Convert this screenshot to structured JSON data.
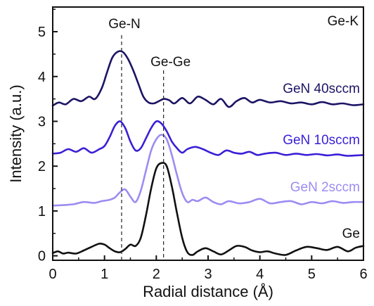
{
  "chart_data": {
    "type": "line",
    "title": "",
    "corner_label": "Ge-K",
    "xlabel": "Radial distance (Å)",
    "ylabel": "Intensity (a.u.)",
    "xlim": [
      0,
      6
    ],
    "ylim": [
      -0.1,
      5.55
    ],
    "xticks": [
      "0",
      "1",
      "2",
      "3",
      "4",
      "5",
      "6"
    ],
    "yticks": [
      "0",
      "1",
      "2",
      "3",
      "4",
      "5"
    ],
    "grid": false,
    "legend": "inline labels next to each curve",
    "reference_lines": [
      {
        "label": "Ge-N",
        "x": 1.33
      },
      {
        "label": "Ge-Ge",
        "x": 2.14
      }
    ],
    "series": [
      {
        "name": "GeN 40sccm",
        "color": "#1b1464",
        "x": [
          0,
          0.12,
          0.25,
          0.4,
          0.55,
          0.7,
          0.82,
          0.95,
          1.05,
          1.15,
          1.25,
          1.35,
          1.45,
          1.55,
          1.65,
          1.75,
          1.85,
          1.95,
          2.05,
          2.15,
          2.25,
          2.35,
          2.5,
          2.65,
          2.8,
          2.95,
          3.1,
          3.25,
          3.4,
          3.55,
          3.7,
          3.85,
          4.0,
          4.2,
          4.4,
          4.6,
          4.8,
          5.0,
          5.2,
          5.4,
          5.6,
          5.8,
          6.0
        ],
        "y": [
          3.35,
          3.42,
          3.38,
          3.5,
          3.45,
          3.55,
          3.5,
          3.75,
          4.1,
          4.42,
          4.55,
          4.55,
          4.4,
          4.15,
          3.85,
          3.55,
          3.42,
          3.4,
          3.45,
          3.5,
          3.47,
          3.4,
          3.52,
          3.4,
          3.55,
          3.48,
          3.38,
          3.5,
          3.32,
          3.45,
          3.52,
          3.42,
          3.48,
          3.42,
          3.45,
          3.4,
          3.42,
          3.38,
          3.43,
          3.38,
          3.4,
          3.36,
          3.38
        ]
      },
      {
        "name": "GeN 10sccm",
        "color": "#3a1fd6",
        "x": [
          0,
          0.15,
          0.3,
          0.45,
          0.6,
          0.75,
          0.9,
          1.0,
          1.1,
          1.2,
          1.3,
          1.4,
          1.5,
          1.6,
          1.7,
          1.8,
          1.9,
          2.0,
          2.1,
          2.2,
          2.3,
          2.4,
          2.5,
          2.6,
          2.75,
          2.9,
          3.05,
          3.2,
          3.35,
          3.5,
          3.65,
          3.8,
          3.95,
          4.1,
          4.3,
          4.5,
          4.7,
          4.9,
          5.1,
          5.3,
          5.5,
          5.7,
          6.0
        ],
        "y": [
          2.28,
          2.3,
          2.38,
          2.32,
          2.4,
          2.3,
          2.38,
          2.45,
          2.65,
          2.9,
          3.0,
          2.85,
          2.55,
          2.35,
          2.4,
          2.62,
          2.85,
          3.0,
          2.95,
          2.78,
          2.55,
          2.4,
          2.3,
          2.38,
          2.43,
          2.38,
          2.3,
          2.25,
          2.35,
          2.3,
          2.28,
          2.32,
          2.25,
          2.28,
          2.3,
          2.25,
          2.28,
          2.25,
          2.27,
          2.24,
          2.26,
          2.23,
          2.25
        ]
      },
      {
        "name": "GeN 2sccm",
        "color": "#9c8cf2",
        "x": [
          0,
          0.2,
          0.4,
          0.6,
          0.8,
          0.95,
          1.1,
          1.2,
          1.3,
          1.4,
          1.5,
          1.6,
          1.7,
          1.8,
          1.9,
          2.0,
          2.1,
          2.2,
          2.3,
          2.4,
          2.5,
          2.6,
          2.7,
          2.8,
          2.95,
          3.1,
          3.25,
          3.4,
          3.6,
          3.8,
          4.0,
          4.2,
          4.4,
          4.6,
          4.8,
          5.0,
          5.2,
          5.4,
          5.6,
          5.8,
          6.0
        ],
        "y": [
          1.12,
          1.13,
          1.15,
          1.2,
          1.18,
          1.22,
          1.25,
          1.3,
          1.42,
          1.48,
          1.32,
          1.2,
          1.45,
          1.9,
          2.35,
          2.6,
          2.7,
          2.6,
          2.25,
          1.8,
          1.4,
          1.2,
          1.25,
          1.22,
          1.3,
          1.2,
          1.15,
          1.22,
          1.17,
          1.2,
          1.27,
          1.17,
          1.2,
          1.22,
          1.15,
          1.2,
          1.17,
          1.22,
          1.18,
          1.2,
          1.2
        ]
      },
      {
        "name": "Ge",
        "color": "#111111",
        "x": [
          0,
          0.1,
          0.2,
          0.3,
          0.45,
          0.6,
          0.75,
          0.9,
          1.0,
          1.1,
          1.2,
          1.3,
          1.4,
          1.5,
          1.6,
          1.7,
          1.8,
          1.9,
          2.0,
          2.1,
          2.2,
          2.3,
          2.4,
          2.5,
          2.6,
          2.7,
          2.8,
          2.95,
          3.1,
          3.25,
          3.4,
          3.55,
          3.7,
          3.85,
          4.0,
          4.15,
          4.3,
          4.5,
          4.7,
          4.9,
          5.1,
          5.3,
          5.5,
          5.7,
          5.85,
          6.0
        ],
        "y": [
          0.06,
          0.1,
          0.05,
          0.07,
          0.05,
          0.12,
          0.2,
          0.27,
          0.25,
          0.17,
          0.1,
          0.08,
          0.15,
          0.25,
          0.22,
          0.4,
          0.9,
          1.5,
          1.95,
          2.07,
          2.0,
          1.55,
          0.95,
          0.4,
          0.08,
          0.02,
          0.1,
          0.17,
          0.1,
          0.03,
          0.12,
          0.22,
          0.2,
          0.12,
          0.08,
          0.1,
          0.05,
          0.02,
          0.12,
          0.2,
          0.17,
          0.13,
          0.2,
          0.1,
          0.18,
          0.22
        ]
      }
    ]
  }
}
